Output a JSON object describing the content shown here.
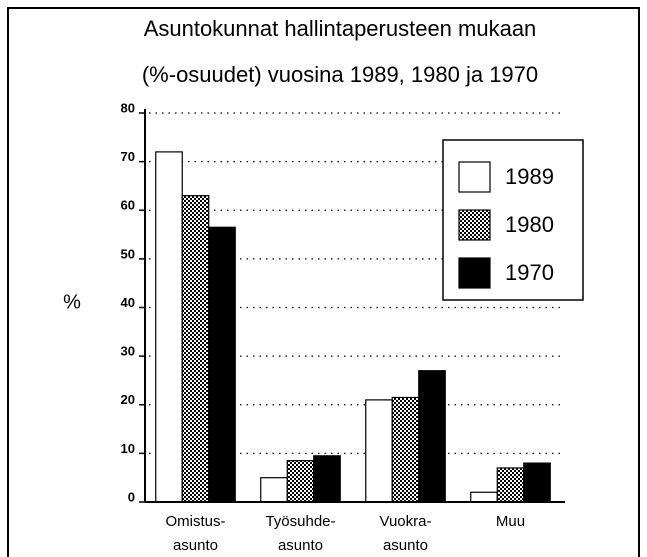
{
  "chart_data": {
    "type": "bar",
    "title": [
      "Asuntokunnat hallintaperusteen mukaan",
      "(%-osuudet) vuosina 1989, 1980 ja 1970"
    ],
    "y_label": "%",
    "categories": [
      [
        "Omistus-",
        "asunto"
      ],
      [
        "Työsuhde-",
        "asunto"
      ],
      [
        "Vuokra-",
        "asunto"
      ],
      [
        "Muu"
      ]
    ],
    "series": [
      {
        "name": "1989",
        "color": "#ffffff",
        "values": [
          72,
          5,
          21,
          2
        ]
      },
      {
        "name": "1980",
        "color": "#8a8a8a",
        "pattern": "checker",
        "values": [
          63,
          8.5,
          21.5,
          7
        ]
      },
      {
        "name": "1970",
        "color": "#000000",
        "values": [
          56.5,
          9.5,
          27,
          8
        ]
      }
    ],
    "ylim": [
      0,
      80
    ],
    "yticks": [
      0,
      10,
      20,
      30,
      40,
      50,
      60,
      70,
      80
    ],
    "grid": true,
    "legend": "upper right"
  }
}
